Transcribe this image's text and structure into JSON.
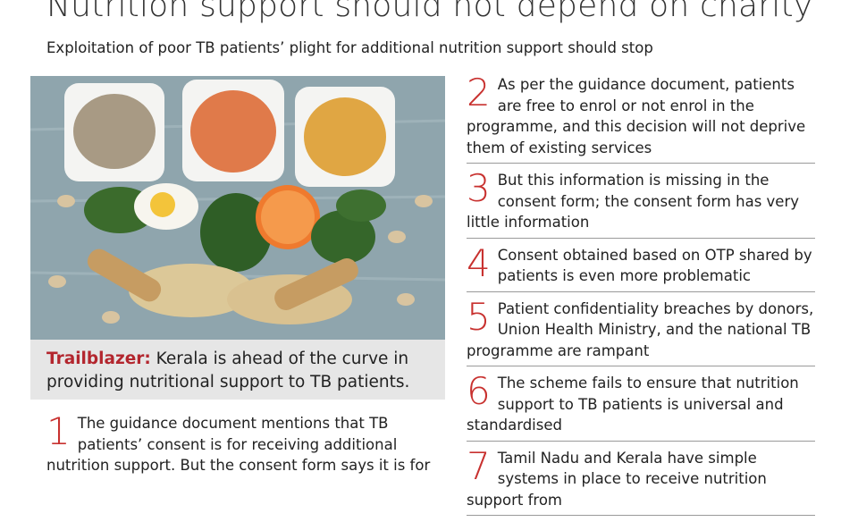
{
  "header": {
    "title": "Nutrition support should not depend on charity",
    "subtitle": "Exploitation of poor TB patients’ plight for additional nutrition support should stop"
  },
  "caption": {
    "label": "Trailblazer:",
    "text": "Kerala is ahead of the curve in providing nutritional support to TB patients."
  },
  "points": [
    {
      "number": 1,
      "text": "The guidance document mentions that TB patients’ consent is for receiving additional nutrition support. But the consent form says it is for"
    },
    {
      "number": 2,
      "text": "As per the guidance document, patients are free to enrol or not enrol in the programme, and this decision will not deprive them of existing services"
    },
    {
      "number": 3,
      "text": "But this information is missing in the consent form; the consent form has very little information"
    },
    {
      "number": 4,
      "text": "Consent obtained based on OTP shared by patients is even more problematic"
    },
    {
      "number": 5,
      "text": "Patient confidentiality breaches by donors, Union Health Ministry, and the national TB programme are rampant"
    },
    {
      "number": 6,
      "text": "The scheme fails to ensure that nutrition support to TB patients is universal and standardised"
    },
    {
      "number": 7,
      "text": "Tamil Nadu and Kerala have simple systems in place to receive nutrition support from"
    }
  ]
}
